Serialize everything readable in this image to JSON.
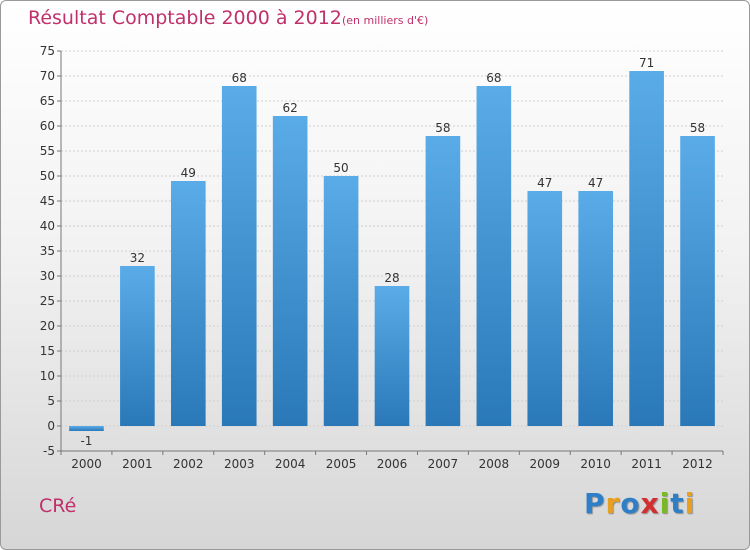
{
  "chart_data": {
    "type": "bar",
    "title": "Résultat Comptable 2000 à 2012",
    "subtitle": "(en milliers d'€)",
    "categories": [
      "2000",
      "2001",
      "2002",
      "2003",
      "2004",
      "2005",
      "2006",
      "2007",
      "2008",
      "2009",
      "2010",
      "2011",
      "2012"
    ],
    "values": [
      -1,
      32,
      49,
      68,
      62,
      50,
      28,
      58,
      68,
      47,
      47,
      71,
      58
    ],
    "ylim": [
      -5,
      75
    ],
    "yticks": [
      -5,
      0,
      5,
      10,
      15,
      20,
      25,
      30,
      35,
      40,
      45,
      50,
      55,
      60,
      65,
      70,
      75
    ],
    "xlabel": "",
    "ylabel": "",
    "grid": true,
    "bar_color": "#3d8fd0"
  },
  "footer": {
    "commune": "CRé",
    "logo_letters": [
      "P",
      "r",
      "o",
      "x",
      "i",
      "t",
      "i"
    ],
    "logo_colors": [
      "#2f7fc8",
      "#e8a020",
      "#2f7fc8",
      "#d23030",
      "#7ab828",
      "#2f7fc8",
      "#e8a020"
    ]
  }
}
